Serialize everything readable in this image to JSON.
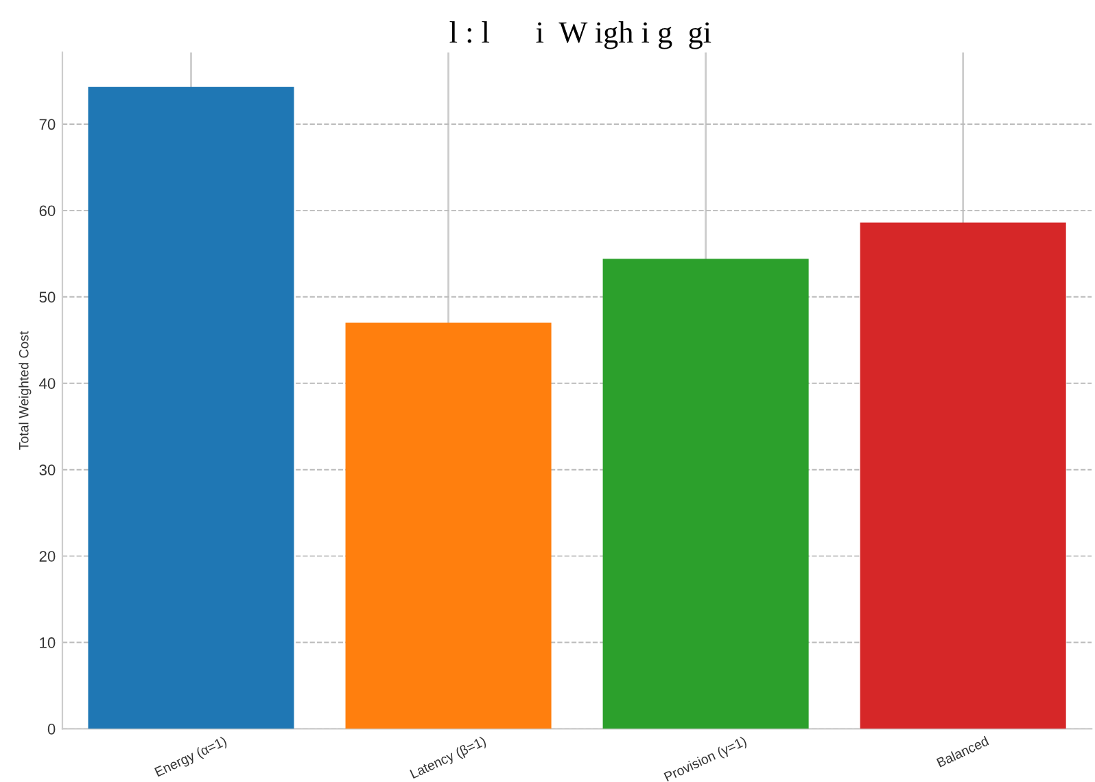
{
  "chart_data": {
    "type": "bar",
    "title": "l : l      i  W igh i g  gi",
    "ylabel": "Total Weighted Cost",
    "categories": [
      "Energy (α=1)",
      "Latency (β=1)",
      "Provision (γ=1)",
      "Balanced"
    ],
    "values": [
      74.3,
      47.0,
      54.4,
      58.6
    ],
    "colors": [
      "#1f77b4",
      "#ff7f0e",
      "#2ca02c",
      "#d62728"
    ],
    "ylim": [
      0,
      78.3
    ],
    "yticks": [
      0,
      10,
      20,
      30,
      40,
      50,
      60,
      70
    ],
    "grid": true
  }
}
